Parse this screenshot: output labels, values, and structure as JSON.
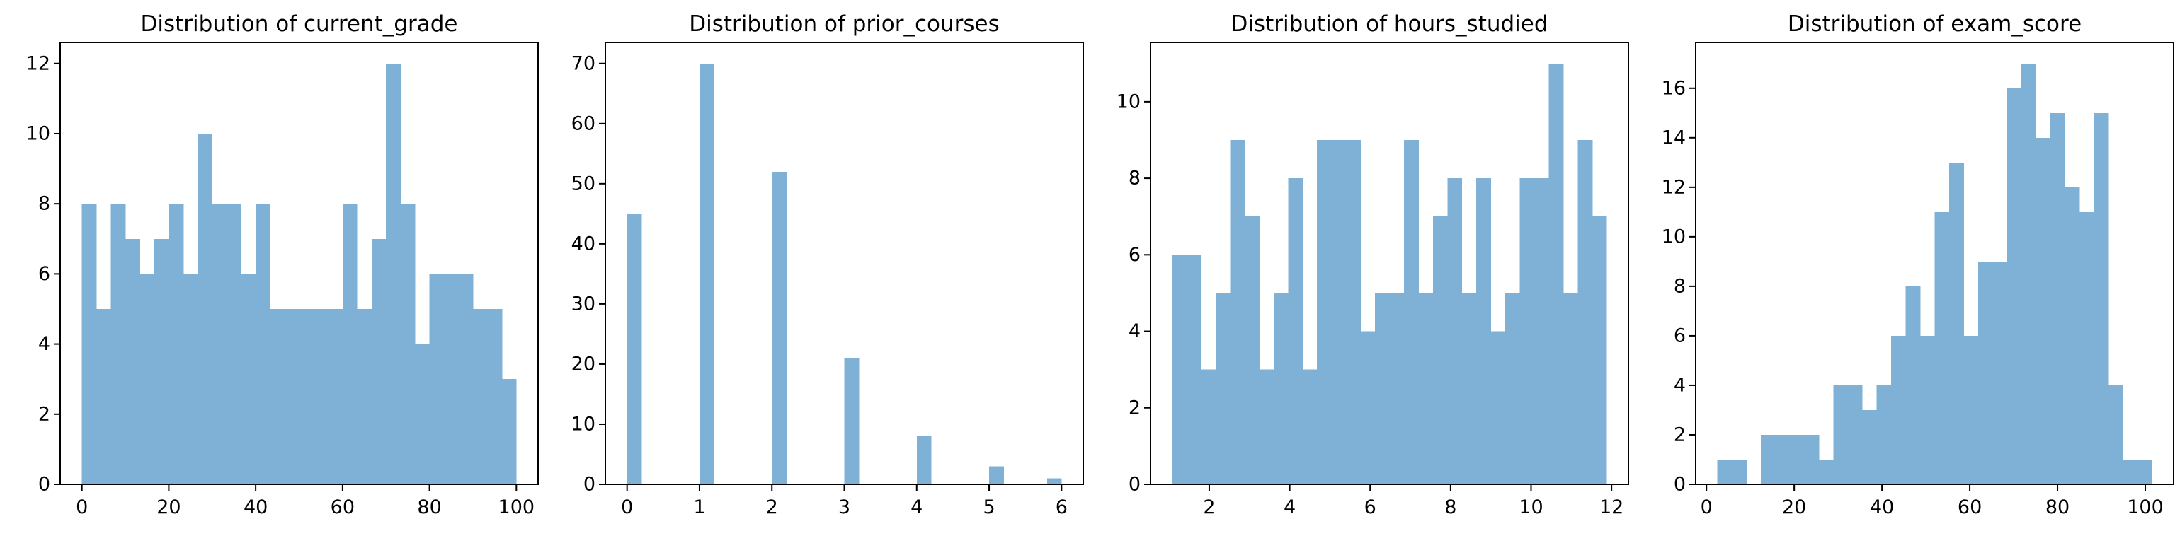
{
  "page": {
    "background_color": "#ffffff",
    "figure_type": "matplotlib-histogram-grid",
    "n_subplots": 4
  },
  "style": {
    "bar_color": "#7fb1d6",
    "axis_color": "#000000",
    "text_color": "#000000"
  },
  "chart_data": [
    {
      "type": "bar",
      "subtype": "histogram",
      "title": "Distribution of current_grade",
      "xlabel": "",
      "ylabel": "",
      "bin_start": 0.0,
      "bin_width": 3.3333,
      "counts": [
        8,
        5,
        8,
        7,
        6,
        7,
        8,
        6,
        10,
        8,
        8,
        6,
        8,
        5,
        5,
        5,
        5,
        5,
        8,
        5,
        7,
        12,
        8,
        4,
        6,
        6,
        6,
        5,
        5,
        3
      ],
      "xticks": [
        0,
        20,
        40,
        60,
        80,
        100
      ],
      "yticks": [
        0,
        2,
        4,
        6,
        8,
        10,
        12
      ],
      "xlim": [
        -5.0,
        105.0
      ],
      "ylim": [
        0,
        12.6
      ],
      "grid": false,
      "legend": null
    },
    {
      "type": "bar",
      "subtype": "histogram",
      "title": "Distribution of prior_courses",
      "xlabel": "",
      "ylabel": "",
      "bin_start": 0.0,
      "bin_width": 0.2,
      "counts": [
        45,
        0,
        0,
        0,
        0,
        70,
        0,
        0,
        0,
        0,
        52,
        0,
        0,
        0,
        0,
        21,
        0,
        0,
        0,
        0,
        8,
        0,
        0,
        0,
        0,
        3,
        0,
        0,
        0,
        1
      ],
      "xticks": [
        0,
        1,
        2,
        3,
        4,
        5,
        6
      ],
      "yticks": [
        0,
        10,
        20,
        30,
        40,
        50,
        60,
        70
      ],
      "xlim": [
        -0.3,
        6.3
      ],
      "ylim": [
        0,
        73.5
      ],
      "grid": false,
      "legend": null
    },
    {
      "type": "bar",
      "subtype": "histogram",
      "title": "Distribution of hours_studied",
      "xlabel": "",
      "ylabel": "",
      "bin_start": 1.08,
      "bin_width": 0.36,
      "counts": [
        6,
        6,
        3,
        5,
        9,
        7,
        3,
        5,
        8,
        3,
        9,
        9,
        9,
        4,
        5,
        5,
        9,
        5,
        7,
        8,
        5,
        8,
        4,
        5,
        8,
        8,
        11,
        5,
        9,
        7
      ],
      "xticks": [
        2,
        4,
        6,
        8,
        10,
        12
      ],
      "yticks": [
        0,
        2,
        4,
        6,
        8,
        10
      ],
      "xlim": [
        0.54,
        12.42
      ],
      "ylim": [
        0,
        11.55
      ],
      "grid": false,
      "legend": null
    },
    {
      "type": "bar",
      "subtype": "histogram",
      "title": "Distribution of exam_score",
      "xlabel": "",
      "ylabel": "",
      "bin_start": 2.5,
      "bin_width": 3.3,
      "counts": [
        1,
        1,
        0,
        2,
        2,
        2,
        2,
        1,
        4,
        4,
        3,
        4,
        6,
        8,
        6,
        11,
        13,
        6,
        9,
        9,
        16,
        17,
        14,
        15,
        12,
        11,
        15,
        4,
        1,
        1
      ],
      "xticks": [
        0,
        20,
        40,
        60,
        80,
        100
      ],
      "yticks": [
        0,
        2,
        4,
        6,
        8,
        10,
        12,
        14,
        16
      ],
      "xlim": [
        -2.45,
        106.45
      ],
      "ylim": [
        0,
        17.85
      ],
      "grid": false,
      "legend": null
    }
  ]
}
